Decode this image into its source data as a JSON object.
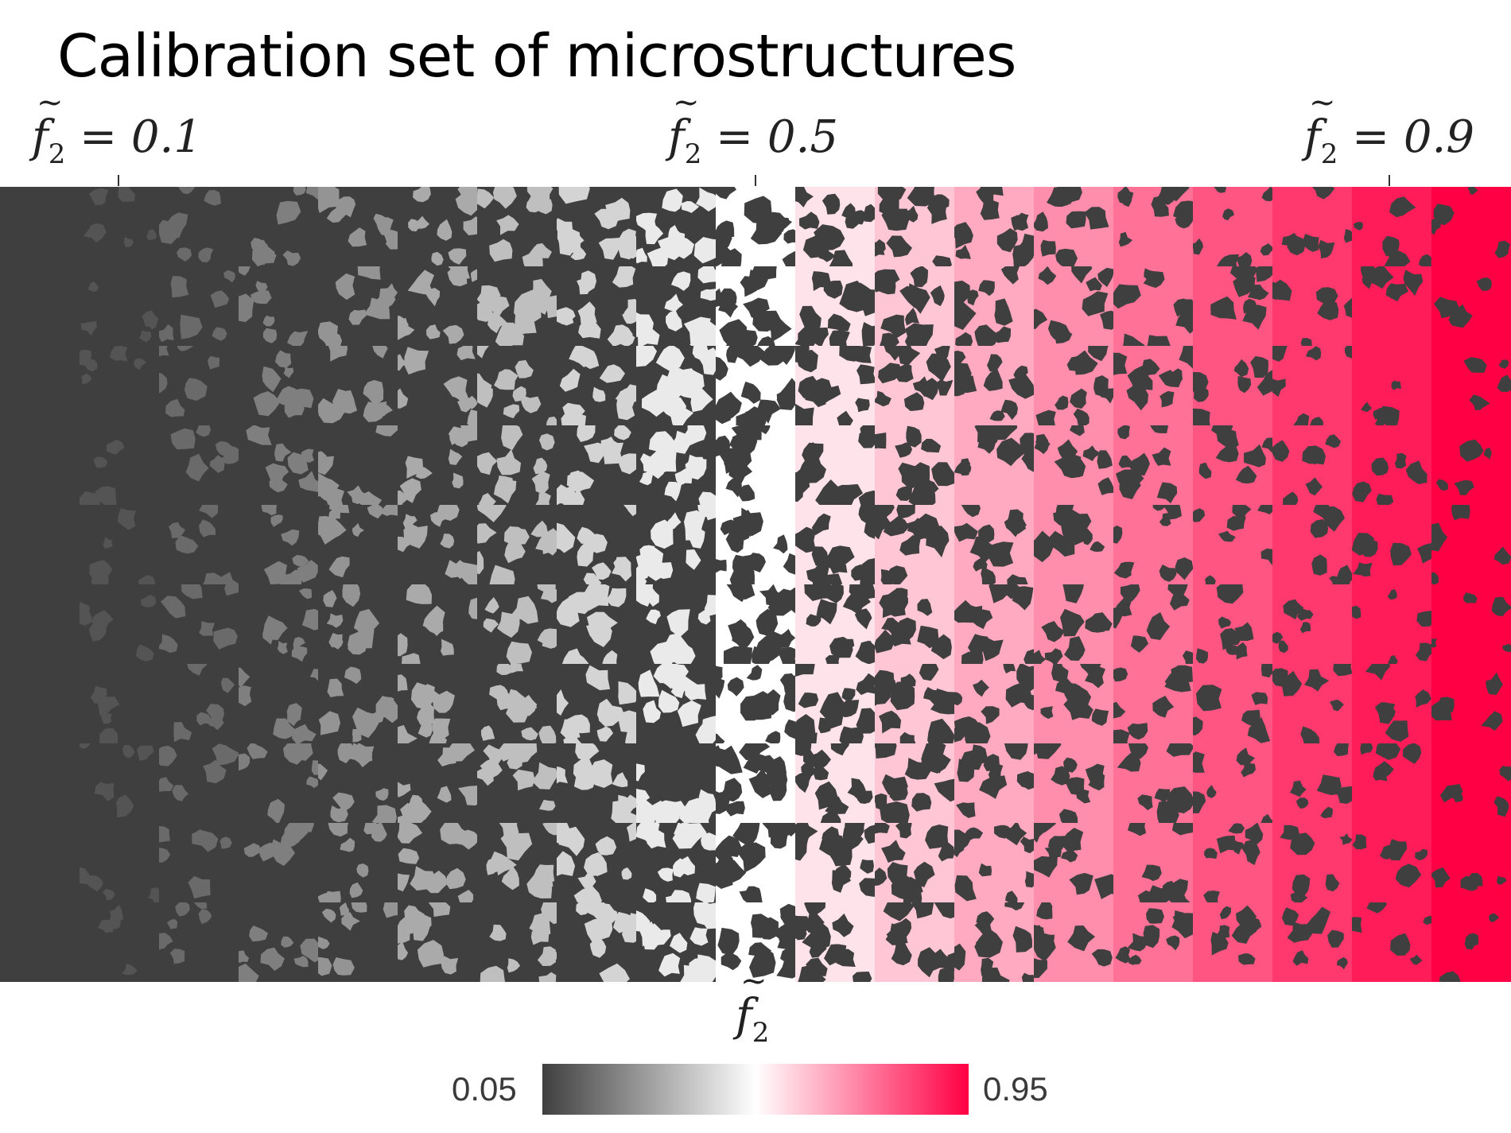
{
  "title": "Calibration set of microstructures",
  "top_labels": [
    {
      "symbol": "f",
      "subscript": "2",
      "text": " = 0.1"
    },
    {
      "symbol": "f",
      "subscript": "2",
      "text": " = 0.5"
    },
    {
      "symbol": "f",
      "subscript": "2",
      "text": " = 0.9"
    }
  ],
  "colorbar": {
    "symbol": "f",
    "subscript": "2",
    "min_label": "0.05",
    "max_label": "0.95",
    "min": 0.05,
    "max": 0.95,
    "colors": [
      "#3f3f3f",
      "#ffffff",
      "#ff0044"
    ]
  },
  "chart_data": {
    "type": "heatmap",
    "rows": 10,
    "columns": 19,
    "column_f2_values": [
      0.05,
      0.1,
      0.15,
      0.2,
      0.25,
      0.3,
      0.35,
      0.4,
      0.45,
      0.5,
      0.55,
      0.6,
      0.65,
      0.7,
      0.75,
      0.8,
      0.85,
      0.9,
      0.95
    ],
    "matrix_color": "#3f3f3f"
  }
}
